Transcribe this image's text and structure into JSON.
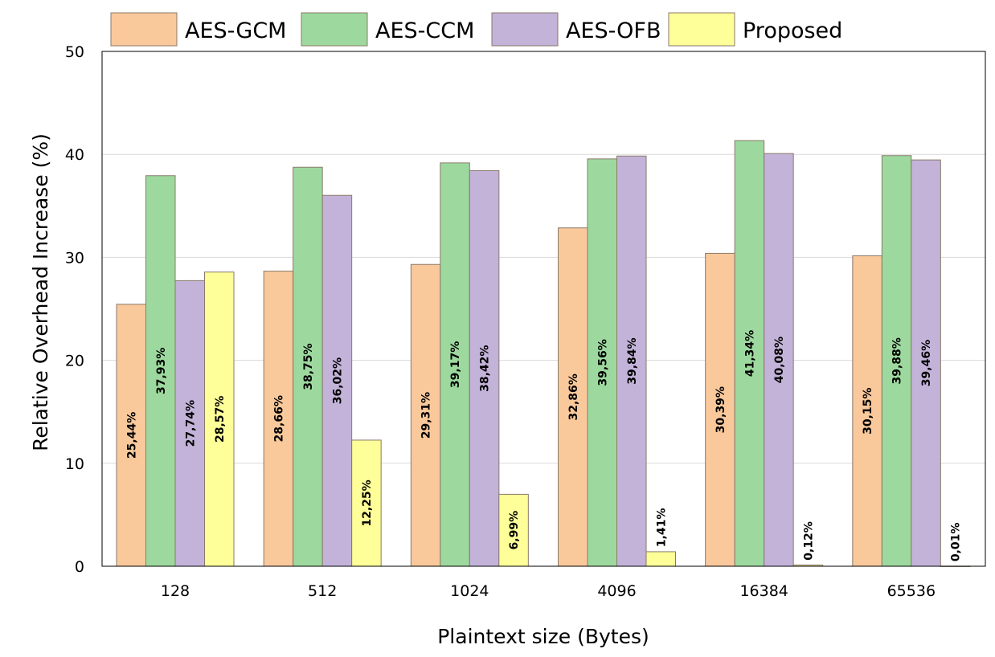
{
  "chart_data": {
    "type": "bar",
    "ylabel": "Relative Overhead Increase (%)",
    "xlabel": "Plaintext size (Bytes)",
    "ylim": [
      0,
      50
    ],
    "yticks": [
      0,
      10,
      20,
      30,
      40,
      50
    ],
    "grid": true,
    "legend_position": "top",
    "categories": [
      "128",
      "512",
      "1024",
      "4096",
      "16384",
      "65536"
    ],
    "series": [
      {
        "name": "AES-GCM",
        "color": "#F9C89B",
        "values": [
          25.44,
          28.66,
          29.31,
          32.86,
          30.39,
          30.15
        ],
        "labels": [
          "25,44%",
          "28,66%",
          "29,31%",
          "32,86%",
          "30,39%",
          "30,15%"
        ]
      },
      {
        "name": "AES-CCM",
        "color": "#9DD99E",
        "values": [
          37.93,
          38.75,
          39.17,
          39.56,
          41.34,
          39.88
        ],
        "labels": [
          "37,93%",
          "38,75%",
          "39,17%",
          "39,56%",
          "41,34%",
          "39,88%"
        ]
      },
      {
        "name": "AES-OFB",
        "color": "#C3B3D9",
        "values": [
          27.74,
          36.02,
          38.42,
          39.84,
          40.08,
          39.46
        ],
        "labels": [
          "27,74%",
          "36,02%",
          "38,42%",
          "39,84%",
          "40,08%",
          "39,46%"
        ]
      },
      {
        "name": "Proposed",
        "color": "#FFFF99",
        "values": [
          28.57,
          12.25,
          6.99,
          1.41,
          0.12,
          0.01
        ],
        "labels": [
          "28,57%",
          "12,25%",
          "6,99%",
          "1,41%",
          "0,12%",
          "0,01%"
        ]
      }
    ]
  }
}
